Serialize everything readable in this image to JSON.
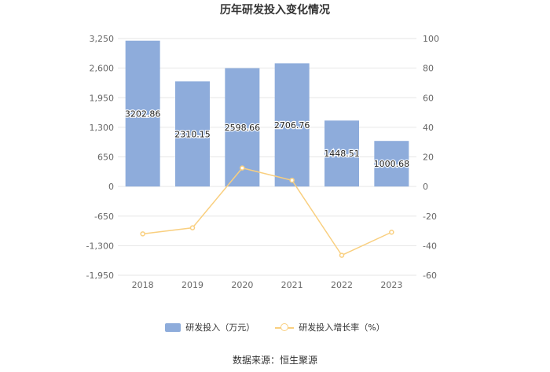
{
  "chart_data": {
    "type": "bar",
    "title": "历年研发投入变化情况",
    "categories": [
      "2018",
      "2019",
      "2020",
      "2021",
      "2022",
      "2023"
    ],
    "series": [
      {
        "name": "研发投入（万元）",
        "type": "bar",
        "axis": "left",
        "color": "#8eacdb",
        "values": [
          3202.86,
          2310.15,
          2598.66,
          2706.76,
          1448.51,
          1000.68
        ],
        "labels": [
          "3202.86",
          "2310.15",
          "2598.66",
          "2706.76",
          "1448.51",
          "1000.68"
        ]
      },
      {
        "name": "研发投入增长率（%）",
        "type": "line",
        "axis": "right",
        "color": "#f9cf7f",
        "values": [
          -32.0,
          -27.9,
          12.5,
          4.2,
          -46.5,
          -30.9
        ]
      }
    ],
    "y_left": {
      "ticks": [
        "3,250",
        "2,600",
        "1,950",
        "1,300",
        "650",
        "0",
        "-650",
        "-1,300",
        "-1,950"
      ],
      "ylim": [
        -1950,
        3250
      ]
    },
    "y_right": {
      "ticks": [
        "100",
        "80",
        "60",
        "40",
        "20",
        "0",
        "-20",
        "-40",
        "-60"
      ],
      "ylim": [
        -60,
        100
      ]
    },
    "grid": true,
    "legend_position": "bottom"
  },
  "source": "数据来源：恒生聚源"
}
